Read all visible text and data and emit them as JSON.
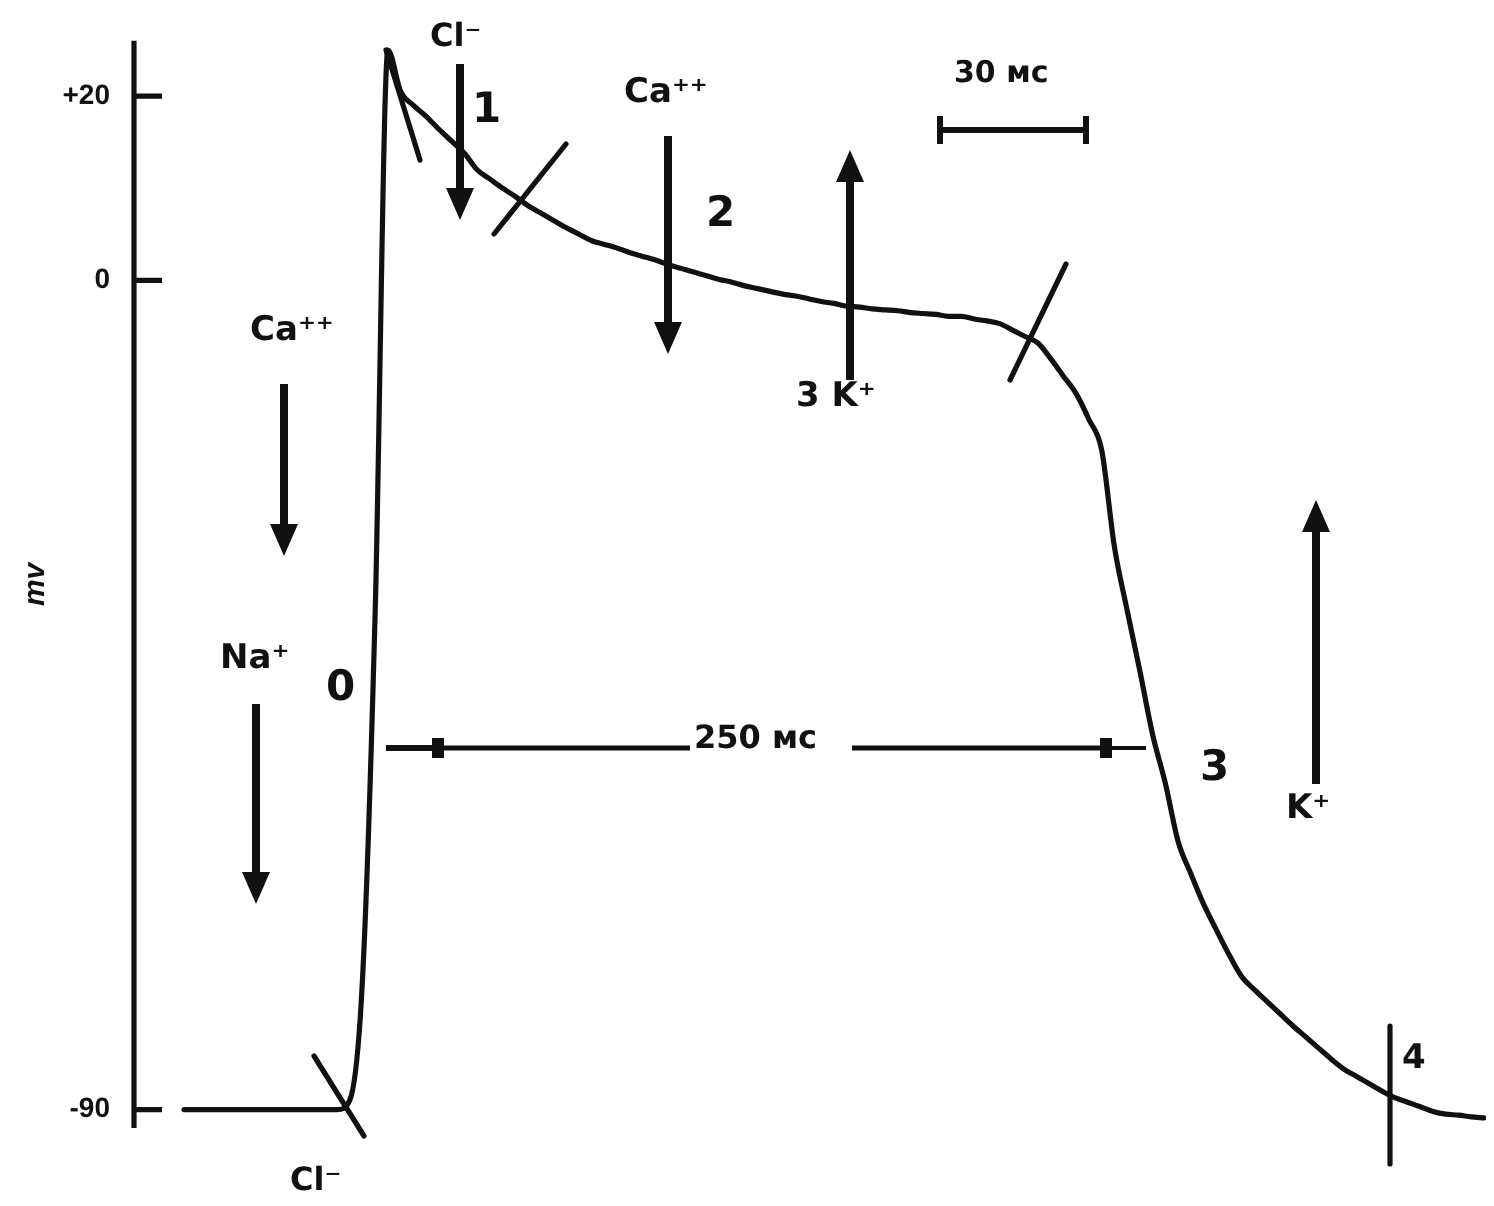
{
  "chart_data": {
    "type": "line",
    "ylabel": "mv",
    "categories": [
      null,
      null,
      null,
      null,
      null,
      null,
      null,
      null,
      null,
      null,
      null,
      null,
      null,
      null,
      null,
      null,
      null,
      null,
      null,
      null,
      null,
      null,
      null,
      null,
      null,
      null,
      null,
      null,
      null,
      null,
      null,
      null,
      null,
      null,
      null,
      null,
      null,
      null,
      null,
      null,
      null,
      null,
      null,
      null,
      null,
      null,
      null,
      null,
      null,
      null,
      null,
      null,
      null,
      null,
      null,
      null,
      null,
      null,
      null,
      null,
      null,
      null,
      null,
      null,
      null,
      null,
      null,
      null,
      null,
      null,
      null,
      null,
      null,
      null,
      null,
      null,
      null,
      null,
      null,
      null,
      null,
      null,
      null,
      null,
      null,
      null,
      null,
      null,
      null,
      null,
      null,
      null,
      null,
      null,
      null,
      null,
      null,
      null,
      null,
      null,
      null,
      null,
      null
    ],
    "values": [
      -90,
      -90,
      -90,
      -90,
      -90,
      -90,
      -90,
      -90,
      -90,
      -90,
      -90,
      -90,
      -90,
      -89,
      -76,
      -36,
      25,
      20.5,
      19,
      17.8,
      16.4,
      15.1,
      13.8,
      12,
      11,
      10,
      9.1,
      8.1,
      7.3,
      6.5,
      5.7,
      5,
      4.3,
      3.9,
      3.5,
      3,
      2.6,
      2.2,
      1.7,
      1.3,
      0.9,
      0.5,
      0.1,
      -0.2,
      -0.6,
      -0.9,
      -1.2,
      -1.5,
      -1.7,
      -2,
      -2.3,
      -2.5,
      -2.8,
      -2.9,
      -3.1,
      -3.2,
      -3.3,
      -3.5,
      -3.6,
      -3.7,
      -3.9,
      -3.9,
      -4.2,
      -4.4,
      -4.7,
      -5.4,
      -6.1,
      -6.8,
      -8.5,
      -10.4,
      -12.3,
      -15.1,
      -18.4,
      -28.9,
      -35.8,
      -42.4,
      -49.3,
      -54.6,
      -60.9,
      -64.4,
      -67.7,
      -70.5,
      -73.2,
      -75.6,
      -77,
      -78.3,
      -79.6,
      -80.9,
      -82.1,
      -83.3,
      -84.5,
      -85.6,
      -86.4,
      -87.2,
      -88,
      -88.7,
      -89.2,
      -89.7,
      -90.2,
      -90.5,
      -90.6,
      -90.8,
      -90.9
    ],
    "color": "#111111",
    "line_style": "solid",
    "ylim": [
      -92,
      26
    ],
    "yticks": [
      {
        "value": 20,
        "label": "+20"
      },
      0,
      -90
    ],
    "tick_labels": "y",
    "annotations": [
      "Cl⁻",
      "1",
      "Ca⁺⁺",
      "30 мс",
      "2",
      "Ca⁺⁺",
      "3 K⁺",
      "Na⁺",
      "0",
      "250 мс",
      "3",
      "K⁺",
      "4",
      "Cl⁻"
    ]
  }
}
